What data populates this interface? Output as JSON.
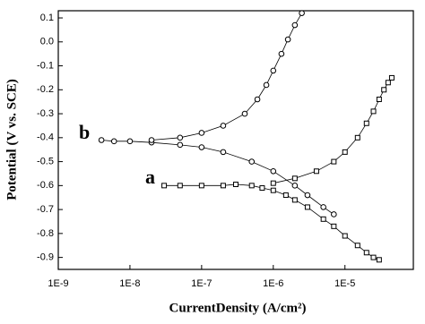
{
  "chart_data": {
    "type": "line",
    "x_label": "CurrentDensity (A/cm²)",
    "y_label": "Potential (V vs. SCE)",
    "xscale": "log",
    "xlim": [
      1e-09,
      9e-05
    ],
    "ylim": [
      -0.95,
      0.13
    ],
    "xticks": [
      {
        "value": 1e-09,
        "label": "1E-9"
      },
      {
        "value": 1e-08,
        "label": "1E-8"
      },
      {
        "value": 1e-07,
        "label": "1E-7"
      },
      {
        "value": 1e-06,
        "label": "1E-6"
      },
      {
        "value": 1e-05,
        "label": "1E-5"
      }
    ],
    "yticks": [
      0.1,
      {
        "value": 0,
        "label": "0.0"
      },
      -0.1,
      -0.2,
      -0.3,
      -0.4,
      -0.5,
      -0.6,
      -0.7,
      -0.8,
      -0.9
    ],
    "series": [
      {
        "name": "a",
        "color": "#000000",
        "marker": "square",
        "x": [
          3e-08,
          5e-08,
          1e-07,
          2e-07,
          3e-07,
          5e-07,
          7e-07,
          1e-06,
          1.5e-06,
          2e-06,
          3e-06,
          5e-06,
          7e-06,
          1e-05,
          1.5e-05,
          2e-05,
          2.5e-05,
          3e-05,
          null,
          1e-06,
          2e-06,
          4e-06,
          7e-06,
          1e-05,
          1.5e-05,
          2e-05,
          2.5e-05,
          3e-05,
          3.5e-05,
          4e-05,
          4.5e-05
        ],
        "values": [
          -0.6,
          -0.6,
          -0.6,
          -0.6,
          -0.595,
          -0.6,
          -0.61,
          -0.62,
          -0.64,
          -0.66,
          -0.69,
          -0.74,
          -0.77,
          -0.81,
          -0.85,
          -0.88,
          -0.9,
          -0.91,
          null,
          -0.59,
          -0.57,
          -0.54,
          -0.5,
          -0.46,
          -0.4,
          -0.34,
          -0.29,
          -0.24,
          -0.2,
          -0.17,
          -0.15
        ]
      },
      {
        "name": "b",
        "color": "#000000",
        "marker": "circle",
        "x": [
          4e-09,
          6e-09,
          1e-08,
          2e-08,
          5e-08,
          1e-07,
          2e-07,
          5e-07,
          1e-06,
          2e-06,
          3e-06,
          5e-06,
          7e-06,
          null,
          2e-08,
          5e-08,
          1e-07,
          2e-07,
          4e-07,
          6e-07,
          8e-07,
          1e-06,
          1.3e-06,
          1.6e-06,
          2e-06,
          2.5e-06
        ],
        "values": [
          -0.41,
          -0.415,
          -0.415,
          -0.42,
          -0.43,
          -0.44,
          -0.46,
          -0.5,
          -0.54,
          -0.6,
          -0.64,
          -0.69,
          -0.72,
          null,
          -0.41,
          -0.4,
          -0.38,
          -0.35,
          -0.3,
          -0.24,
          -0.18,
          -0.12,
          -0.05,
          0.01,
          0.07,
          0.12
        ]
      }
    ]
  }
}
